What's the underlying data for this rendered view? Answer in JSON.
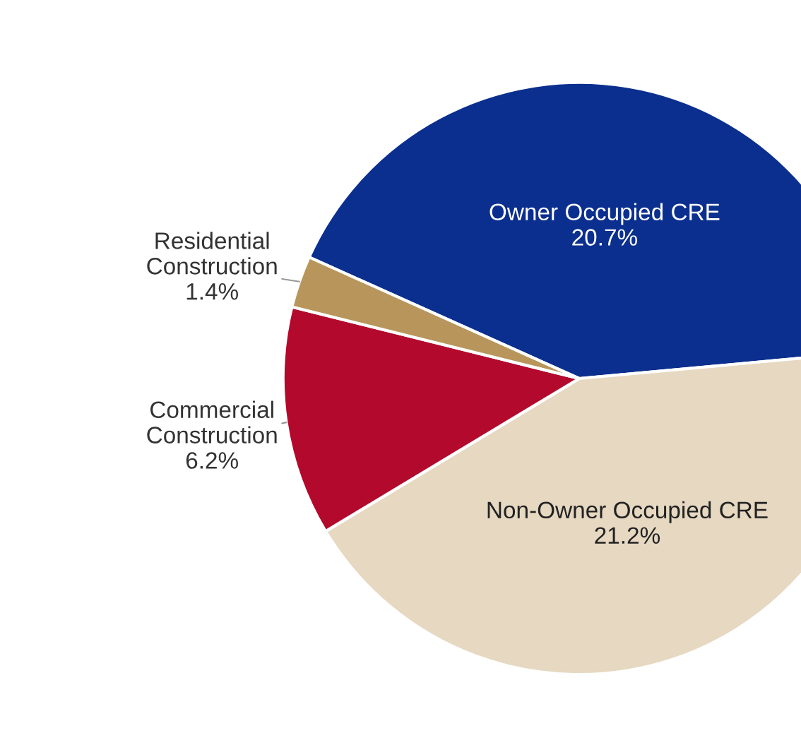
{
  "chart_data": {
    "type": "pie",
    "categories": [
      "Owner Occupied CRE",
      "Non-Owner Occupied CRE",
      "Commercial Construction",
      "Residential Construction"
    ],
    "values": [
      20.7,
      21.2,
      6.2,
      1.4
    ],
    "value_labels": [
      "20.7%",
      "21.2%",
      "6.2%",
      "1.4%"
    ],
    "colors": [
      "#0b2f8e",
      "#e6d8c1",
      "#b3092c",
      "#b8955b"
    ]
  }
}
